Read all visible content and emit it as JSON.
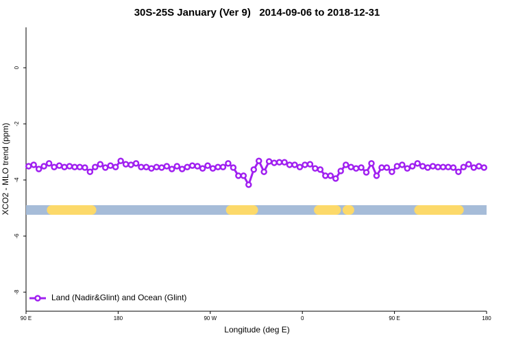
{
  "chart_data": {
    "type": "line",
    "title": "30S-25S January (Ver 9)   2014-09-06 to 2018-12-31",
    "x_label": "Longitude (deg E)",
    "y_label": "XCO2 - MLO trend (ppm)",
    "xlim": [
      90,
      540
    ],
    "ylim": [
      -8.68,
      1.44
    ],
    "xticks": [
      {
        "value": 90,
        "label": "90 E"
      },
      {
        "value": 180,
        "label": "180"
      },
      {
        "value": 270,
        "label": "90 W"
      },
      {
        "value": 360,
        "label": "0"
      },
      {
        "value": 450,
        "label": "90 E"
      },
      {
        "value": 540,
        "label": "180"
      }
    ],
    "yticks": [
      0,
      -2,
      -4,
      -6,
      -8
    ],
    "legend": "bottom-left",
    "x": [
      92.5,
      97.5,
      102.5,
      107.5,
      112.5,
      117.5,
      122.5,
      127.5,
      132.5,
      137.5,
      142.5,
      147.5,
      152.5,
      157.5,
      162.5,
      167.5,
      172.5,
      177.5,
      182.5,
      187.5,
      192.5,
      197.5,
      202.5,
      207.5,
      212.5,
      217.5,
      222.5,
      227.5,
      232.5,
      237.5,
      242.5,
      247.5,
      252.5,
      257.5,
      262.5,
      267.5,
      272.5,
      277.5,
      282.5,
      287.5,
      292.5,
      297.5,
      302.5,
      307.5,
      312.5,
      317.5,
      322.5,
      327.5,
      332.5,
      337.5,
      342.5,
      347.5,
      352.5,
      357.5,
      362.5,
      367.5,
      372.5,
      377.5,
      382.5,
      387.5,
      392.5,
      397.5,
      402.5,
      407.5,
      412.5,
      417.5,
      422.5,
      427.5,
      432.5,
      437.5,
      442.5,
      447.5,
      452.5,
      457.5,
      462.5,
      467.5,
      472.5,
      477.5,
      482.5,
      487.5,
      492.5,
      497.5,
      502.5,
      507.5,
      512.5,
      517.5,
      522.5,
      527.5,
      532.5,
      537.5
    ],
    "series": [
      {
        "name": "Land (Nadir&Glint) and Ocean (Glint)",
        "color": "#a020f0",
        "values": [
          -3.51,
          -3.46,
          -3.61,
          -3.51,
          -3.41,
          -3.54,
          -3.49,
          -3.54,
          -3.51,
          -3.54,
          -3.54,
          -3.56,
          -3.71,
          -3.54,
          -3.44,
          -3.56,
          -3.49,
          -3.54,
          -3.32,
          -3.44,
          -3.46,
          -3.41,
          -3.54,
          -3.54,
          -3.59,
          -3.54,
          -3.56,
          -3.51,
          -3.61,
          -3.51,
          -3.61,
          -3.54,
          -3.49,
          -3.51,
          -3.59,
          -3.49,
          -3.59,
          -3.54,
          -3.54,
          -3.41,
          -3.56,
          -3.85,
          -3.85,
          -4.17,
          -3.63,
          -3.32,
          -3.71,
          -3.34,
          -3.39,
          -3.37,
          -3.37,
          -3.46,
          -3.46,
          -3.54,
          -3.46,
          -3.44,
          -3.59,
          -3.63,
          -3.85,
          -3.85,
          -3.95,
          -3.68,
          -3.46,
          -3.54,
          -3.59,
          -3.56,
          -3.73,
          -3.41,
          -3.85,
          -3.56,
          -3.56,
          -3.71,
          -3.51,
          -3.46,
          -3.59,
          -3.51,
          -3.41,
          -3.51,
          -3.56,
          -3.51,
          -3.54,
          -3.54,
          -3.54,
          -3.56,
          -3.71,
          -3.54,
          -3.44,
          -3.56,
          -3.51,
          -3.56
        ]
      }
    ],
    "land_segments": [
      [
        115,
        154
      ],
      [
        290,
        312
      ],
      [
        376,
        393
      ],
      [
        404,
        406
      ],
      [
        474,
        513
      ]
    ],
    "land_color": "#fcd96a",
    "ocean_color": "#a6bcd8"
  }
}
